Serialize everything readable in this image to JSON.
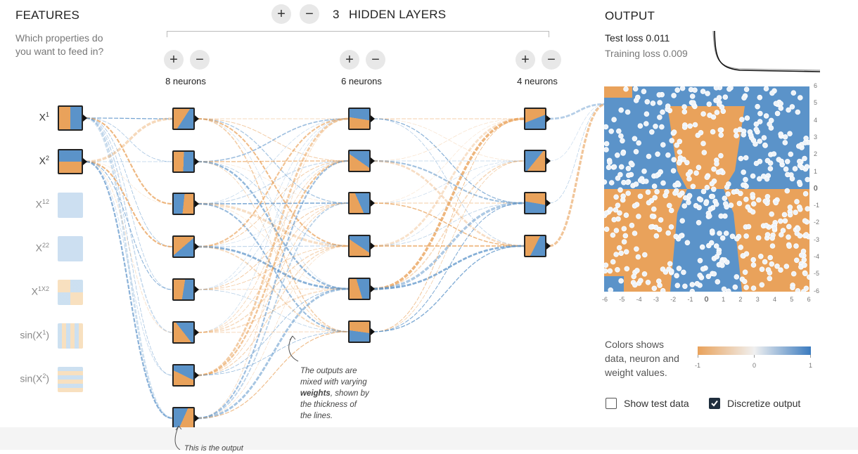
{
  "features": {
    "title": "FEATURES",
    "subtitle_line1": "Which properties do",
    "subtitle_line2": "you want to feed in?",
    "items": [
      {
        "base": "X",
        "sup": "1",
        "tail": "",
        "suffix": "",
        "active": true
      },
      {
        "base": "X",
        "sup": "2",
        "tail": "",
        "suffix": "",
        "active": true
      },
      {
        "base": "X",
        "sup": "1",
        "tail": "2",
        "suffix": "",
        "active": false
      },
      {
        "base": "X",
        "sup": "2",
        "tail": "2",
        "suffix": "",
        "active": false
      },
      {
        "base": "X",
        "sup": "1",
        "tail": "X2",
        "suffix": "",
        "active": false
      },
      {
        "base": "sin(X",
        "sup": "1",
        "tail": "",
        "suffix": ")",
        "active": false
      },
      {
        "base": "sin(X",
        "sup": "2",
        "tail": "",
        "suffix": ")",
        "active": false
      }
    ]
  },
  "hidden_layers": {
    "plus": "+",
    "minus": "−",
    "count": "3",
    "label": "HIDDEN LAYERS",
    "layers": [
      {
        "neurons_label": "8 neurons"
      },
      {
        "neurons_label": "6 neurons"
      },
      {
        "neurons_label": "4 neurons"
      }
    ]
  },
  "output": {
    "title": "OUTPUT",
    "test_loss": "Test loss 0.011",
    "training_loss": "Training loss 0.009",
    "x_ticks": [
      "-6",
      "-5",
      "-4",
      "-3",
      "-2",
      "-1",
      "0",
      "1",
      "2",
      "3",
      "4",
      "5",
      "6"
    ],
    "y_ticks": [
      "6",
      "5",
      "4",
      "3",
      "2",
      "1",
      "0",
      "-1",
      "-2",
      "-3",
      "-4",
      "-5",
      "-6"
    ]
  },
  "legend": {
    "line1": "Colors shows",
    "line2": "data, neuron and",
    "line3": "weight values.",
    "min": "-1",
    "mid": "0",
    "max": "1"
  },
  "controls": {
    "show_test_data": "Show test data",
    "discretize_output": "Discretize output",
    "discretize_checked": true,
    "show_test_checked": false
  },
  "annotations": {
    "weights_line1": "The outputs are",
    "weights_line2": "mixed with varying",
    "weights_bold": "weights",
    "weights_line3_rest": ", shown by",
    "weights_line4": "the thickness of",
    "weights_line5": "the lines.",
    "bottom_partial": "This is the output"
  },
  "colors": {
    "blue": "#5b93c9",
    "orange": "#e9a25b",
    "light_blue": "#c7dcef",
    "light_orange": "#f7dcb8"
  }
}
